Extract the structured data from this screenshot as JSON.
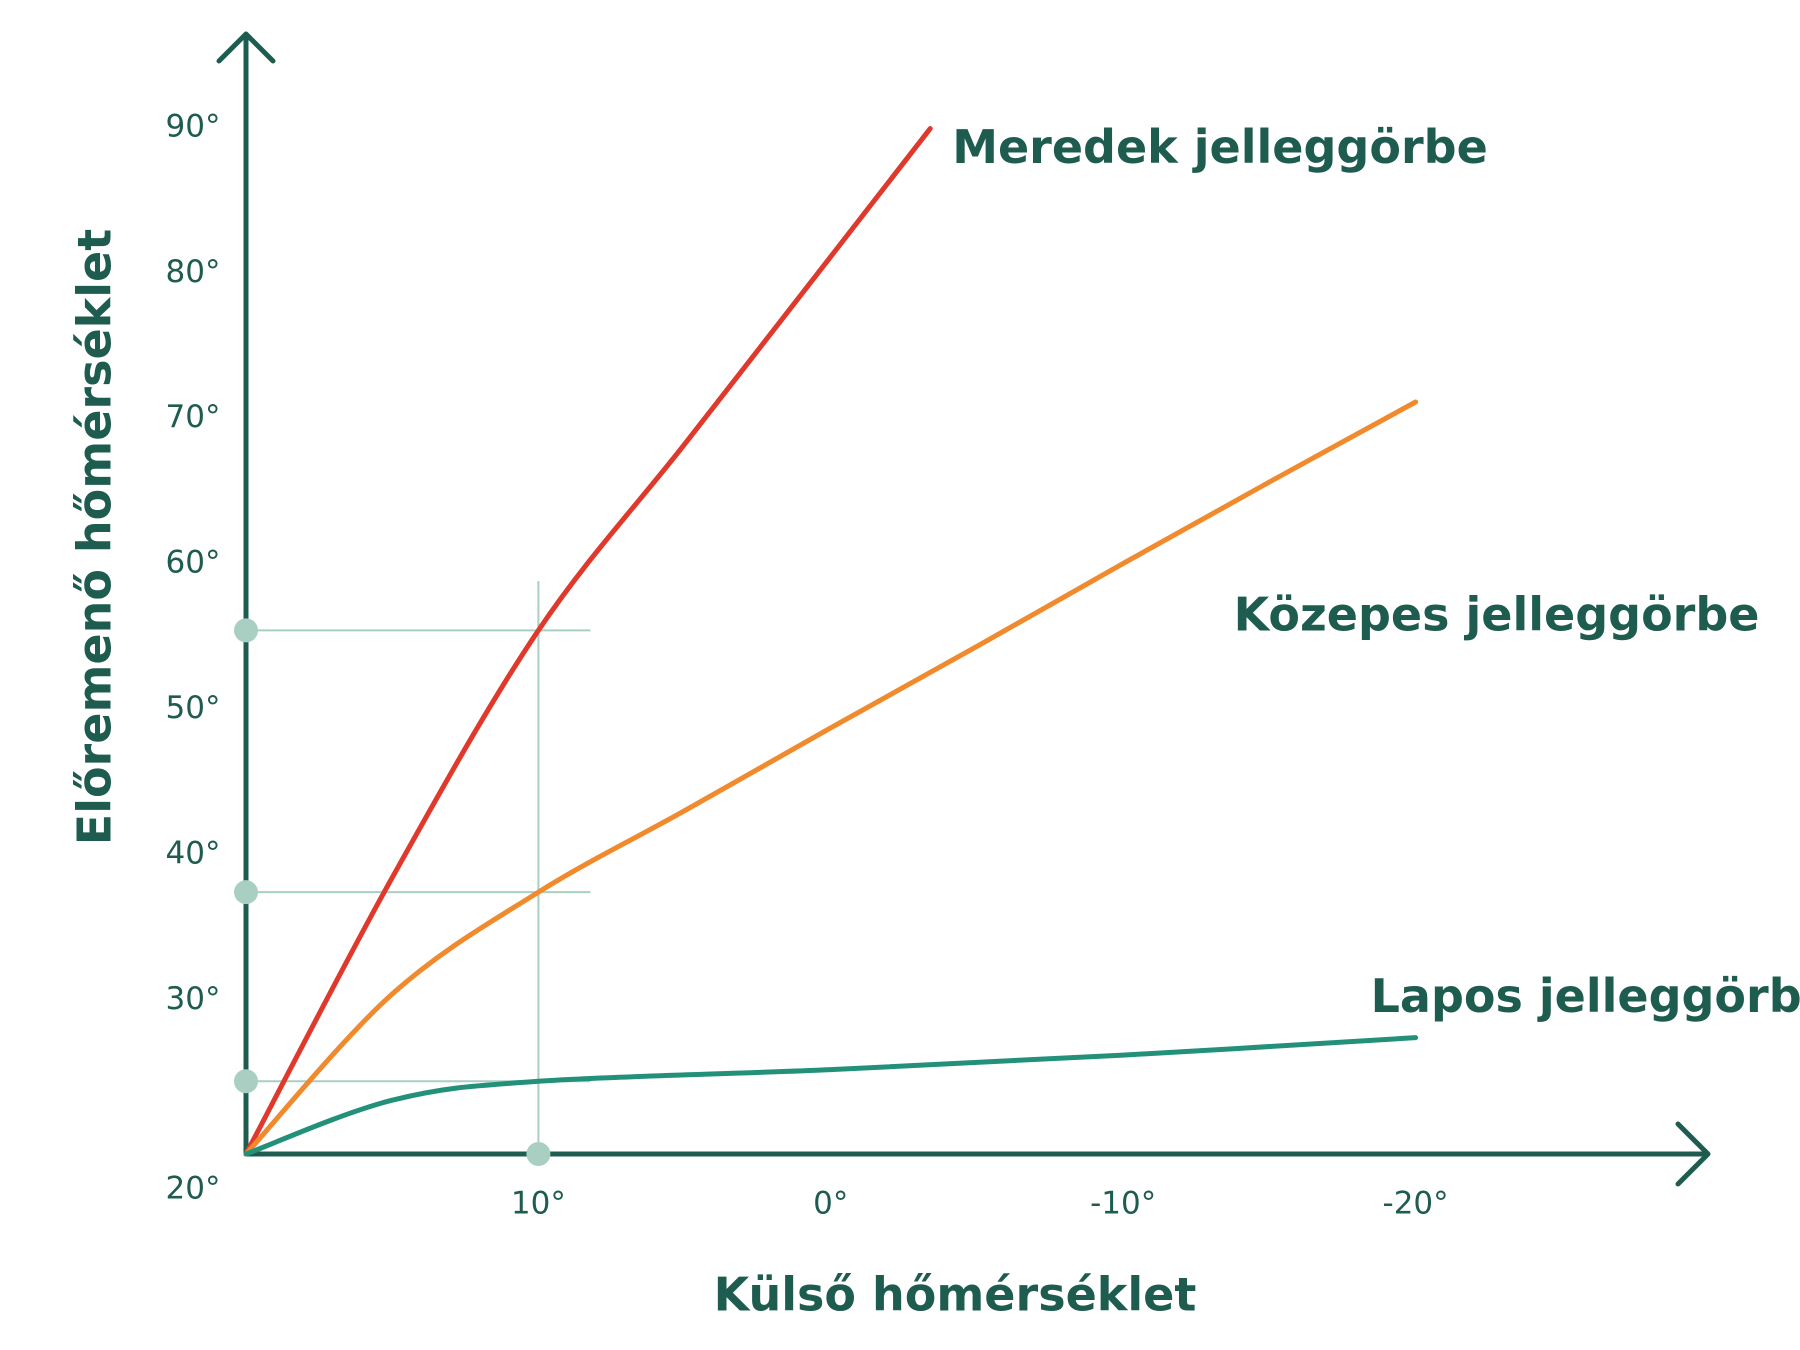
{
  "chart_data": {
    "type": "line",
    "x_label": "Külső hőmérséklet",
    "y_label": "Előremenő hőmérséklet",
    "xlim": [
      20,
      -30
    ],
    "ylim": [
      20,
      97
    ],
    "xticks": [
      {
        "value": 10,
        "label": "10°"
      },
      {
        "value": 0,
        "label": "0°"
      },
      {
        "value": -10,
        "label": "-10°"
      },
      {
        "value": -20,
        "label": "-20°"
      }
    ],
    "yticks": [
      {
        "value": 20,
        "label": "20°"
      },
      {
        "value": 30,
        "label": "30°"
      },
      {
        "value": 40,
        "label": "40°"
      },
      {
        "value": 50,
        "label": "50°"
      },
      {
        "value": 60,
        "label": "60°"
      },
      {
        "value": 70,
        "label": "70°"
      },
      {
        "value": 80,
        "label": "80°"
      },
      {
        "value": 90,
        "label": "90°"
      }
    ],
    "series": [
      {
        "name": "Meredek jelleggörbe",
        "color": "#e0392b",
        "x": [
          20,
          15,
          10,
          5,
          0,
          -3.4
        ],
        "values": [
          20,
          39,
          56,
          68.8,
          81.7,
          90.5
        ]
      },
      {
        "name": "Közepes jelleggörbe",
        "color": "#f08a2c",
        "x": [
          20,
          15,
          10,
          5,
          0,
          -5,
          -10,
          -15,
          -20
        ],
        "values": [
          20,
          31,
          38,
          43.6,
          49.3,
          54.9,
          60.6,
          66.2,
          71.7
        ]
      },
      {
        "name": "Lapos jelleggörbe",
        "color": "#23917a",
        "x": [
          20,
          15,
          10,
          0,
          -10,
          -20
        ],
        "values": [
          20,
          23.7,
          25,
          25.8,
          26.8,
          28
        ]
      }
    ],
    "reference": {
      "x": 10,
      "y": [
        56,
        38,
        25
      ]
    }
  }
}
